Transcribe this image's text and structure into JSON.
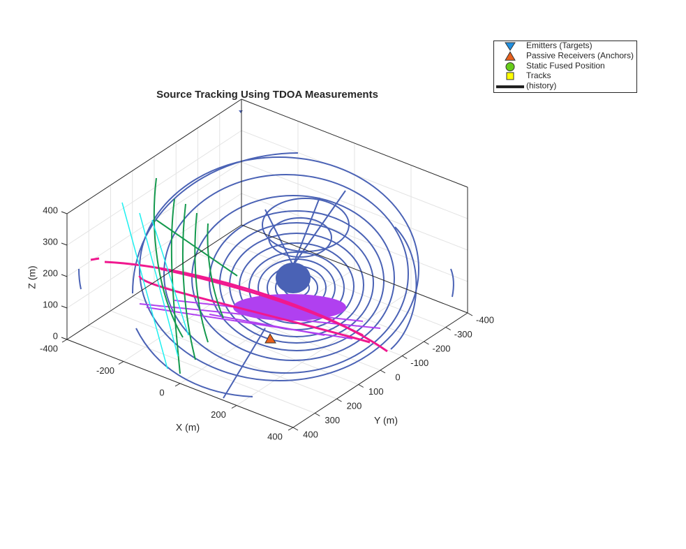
{
  "chart_data": {
    "type": "line3d",
    "title": "Source Tracking Using TDOA Measurements",
    "xlabel": "X (m)",
    "ylabel": "Y (m)",
    "zlabel": "Z (m)",
    "xlim": [
      -400,
      400
    ],
    "ylim": [
      -400,
      400
    ],
    "zlim": [
      0,
      400
    ],
    "xticks": [
      -400,
      -200,
      0,
      200,
      400
    ],
    "yticks": [
      -400,
      -300,
      -200,
      -100,
      0,
      100,
      200,
      300,
      400
    ],
    "zticks": [
      0,
      100,
      200,
      300,
      400
    ],
    "grid": true,
    "legend": {
      "location": "northeast",
      "entries": [
        {
          "label": "Emitters (Targets)",
          "marker": "triangle-down",
          "color": "#1f8fe0"
        },
        {
          "label": "Passive Receivers (Anchors)",
          "marker": "triangle",
          "color": "#e8601c"
        },
        {
          "label": "Static Fused Position",
          "marker": "circle",
          "color": "#66cc1a"
        },
        {
          "label": "Tracks",
          "marker": "square",
          "color": "#ffff00"
        },
        {
          "label": "(history)",
          "marker": "line",
          "color": "#1a1a1a"
        }
      ]
    }
  }
}
